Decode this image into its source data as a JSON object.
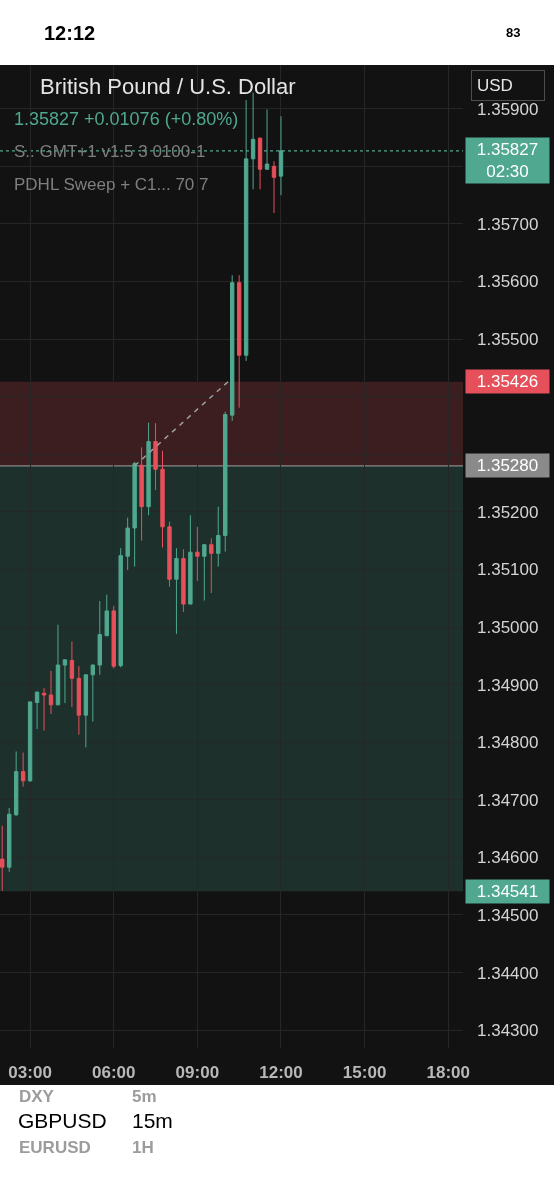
{
  "chart_data": {
    "type": "candlestick",
    "title": "British Pound / U.S. Dollar",
    "subtitle": "1.35827 +0.01076 (+0.80%)",
    "x": [
      2,
      2.25,
      2.5,
      2.75,
      3,
      3.25,
      3.5,
      3.75,
      4,
      4.25,
      4.5,
      4.75,
      5,
      5.25,
      5.5,
      5.75,
      6,
      6.25,
      6.5,
      6.75,
      7,
      7.25,
      7.5,
      7.75,
      8,
      8.25,
      8.5,
      8.75,
      9,
      9.25,
      9.5,
      9.75,
      10,
      10.25,
      10.5,
      10.75,
      11,
      11.25,
      11.5,
      11.75,
      12
    ],
    "ohlc": [
      [
        1.34597,
        1.34655,
        1.34542,
        1.34583
      ],
      [
        1.34583,
        1.34686,
        1.34575,
        1.34675
      ],
      [
        1.34674,
        1.34784,
        1.34672,
        1.34749
      ],
      [
        1.34749,
        1.34782,
        1.34723,
        1.34733
      ],
      [
        1.34733,
        1.34871,
        1.34731,
        1.3487
      ],
      [
        1.34869,
        1.34888,
        1.34823,
        1.34887
      ],
      [
        1.34885,
        1.34894,
        1.3482,
        1.34882
      ],
      [
        1.34882,
        1.34924,
        1.34849,
        1.34865
      ],
      [
        1.34865,
        1.35004,
        1.34864,
        1.34934
      ],
      [
        1.34934,
        1.34944,
        1.34868,
        1.34943
      ],
      [
        1.34942,
        1.34975,
        1.34861,
        1.34911
      ],
      [
        1.34911,
        1.34932,
        1.34813,
        1.34847
      ],
      [
        1.34847,
        1.34918,
        1.34791,
        1.34917
      ],
      [
        1.34917,
        1.34935,
        1.34836,
        1.34934
      ],
      [
        1.34934,
        1.35045,
        1.34917,
        1.34987
      ],
      [
        1.34985,
        1.35056,
        1.34984,
        1.35028
      ],
      [
        1.35028,
        1.35037,
        1.34928,
        1.34932
      ],
      [
        1.34933,
        1.35137,
        1.3493,
        1.35124
      ],
      [
        1.35123,
        1.3519,
        1.35099,
        1.35172
      ],
      [
        1.35172,
        1.35287,
        1.35105,
        1.35284
      ],
      [
        1.35281,
        1.35312,
        1.3515,
        1.35209
      ],
      [
        1.35209,
        1.35355,
        1.35194,
        1.35322
      ],
      [
        1.35322,
        1.35354,
        1.35238,
        1.35274
      ],
      [
        1.35274,
        1.35306,
        1.35138,
        1.35174
      ],
      [
        1.35174,
        1.35183,
        1.3507,
        1.35083
      ],
      [
        1.35083,
        1.35137,
        1.34988,
        1.35119
      ],
      [
        1.35119,
        1.35135,
        1.35026,
        1.3504
      ],
      [
        1.3504,
        1.35194,
        1.35039,
        1.3513
      ],
      [
        1.3513,
        1.35174,
        1.3508,
        1.35123
      ],
      [
        1.35123,
        1.35144,
        1.35046,
        1.35143
      ],
      [
        1.35143,
        1.35154,
        1.35059,
        1.35128
      ],
      [
        1.35128,
        1.35209,
        1.35105,
        1.35159
      ],
      [
        1.35159,
        1.35374,
        1.35131,
        1.35369
      ],
      [
        1.35368,
        1.35611,
        1.35358,
        1.35598
      ],
      [
        1.35598,
        1.35611,
        1.35381,
        1.35472
      ],
      [
        1.35472,
        1.35915,
        1.35462,
        1.35813
      ],
      [
        1.35813,
        1.35928,
        1.3576,
        1.35847
      ],
      [
        1.35849,
        1.3585,
        1.3576,
        1.35795
      ],
      [
        1.35795,
        1.35899,
        1.35794,
        1.35804
      ],
      [
        1.358,
        1.35809,
        1.35719,
        1.35781
      ],
      [
        1.35783,
        1.35887,
        1.3575,
        1.35827
      ]
    ],
    "colors": [
      "#e5505b",
      "#4fa88f",
      "#4fa88f",
      "#e5505b",
      "#4fa88f",
      "#4fa88f",
      "#e5505b",
      "#e5505b",
      "#4fa88f",
      "#4fa88f",
      "#e5505b",
      "#e5505b",
      "#4fa88f",
      "#4fa88f",
      "#4fa88f",
      "#4fa88f",
      "#e5505b",
      "#4fa88f",
      "#4fa88f",
      "#4fa88f",
      "#e5505b",
      "#4fa88f",
      "#e5505b",
      "#e5505b",
      "#e5505b",
      "#4fa88f",
      "#e5505b",
      "#4fa88f",
      "#e5505b",
      "#4fa88f",
      "#e5505b",
      "#4fa88f",
      "#4fa88f",
      "#4fa88f",
      "#e5505b",
      "#4fa88f",
      "#4fa88f",
      "#e5505b",
      "#4fa88f",
      "#e5505b",
      "#4fa88f"
    ],
    "series": [
      {
        "type": "line",
        "x": [
          6.75,
          10.1
        ],
        "values": [
          1.3528,
          1.35426
        ],
        "color": "#9e9e9e",
        "line_style": "dashed"
      }
    ],
    "xlim": [
      1.92,
      18.53
    ],
    "xticks": [
      {
        "value": 3,
        "label": "03:00"
      },
      {
        "value": 6,
        "label": "06:00"
      },
      {
        "value": 9,
        "label": "09:00"
      },
      {
        "value": 12,
        "label": "12:00"
      },
      {
        "value": 15,
        "label": "15:00"
      },
      {
        "value": 18,
        "label": "18:00"
      }
    ],
    "ylim": [
      1.34269,
      1.35976
    ],
    "yticks": [
      {
        "value": 1.343,
        "label": "1.34300"
      },
      {
        "value": 1.344,
        "label": "1.34400"
      },
      {
        "value": 1.345,
        "label": "1.34500"
      },
      {
        "value": 1.346,
        "label": "1.34600"
      },
      {
        "value": 1.347,
        "label": "1.34700"
      },
      {
        "value": 1.348,
        "label": "1.34800"
      },
      {
        "value": 1.349,
        "label": "1.34900"
      },
      {
        "value": 1.35,
        "label": "1.35000"
      },
      {
        "value": 1.351,
        "label": "1.35100"
      },
      {
        "value": 1.352,
        "label": "1.35200"
      },
      {
        "value": 1.353,
        "label": null
      },
      {
        "value": 1.354,
        "label": null
      },
      {
        "value": 1.355,
        "label": "1.35500"
      },
      {
        "value": 1.356,
        "label": "1.35600"
      },
      {
        "value": 1.357,
        "label": "1.35700"
      },
      {
        "value": 1.358,
        "label": null
      },
      {
        "value": 1.359,
        "label": "1.35900"
      }
    ],
    "grid": true,
    "ref_lines": [
      {
        "axis": "y",
        "value": 1.35827,
        "label": "1.35827\n02:30",
        "color": "#4fa88f",
        "line_style": "dotted"
      },
      {
        "axis": "y",
        "value": 1.3528,
        "label": "1.35280",
        "color": "#8a8a8a",
        "line_style": "solid"
      }
    ],
    "bands": [
      {
        "axis": "y",
        "from": 1.3528,
        "to": 1.35426,
        "label": "1.35426",
        "color": "#e5505b"
      },
      {
        "axis": "y",
        "from": 1.3528,
        "to": 1.34541,
        "label": "1.34541",
        "color": "#4fa88f"
      }
    ],
    "annotations": [
      "S.. GMT+1 v1.5 3 0100-1",
      "PDHL Sweep + C1... 70 7",
      "USD",
      "12:12",
      "83",
      "DXY",
      "5m",
      "GBPUSD",
      "15m",
      "EURUSD",
      "1H"
    ]
  }
}
